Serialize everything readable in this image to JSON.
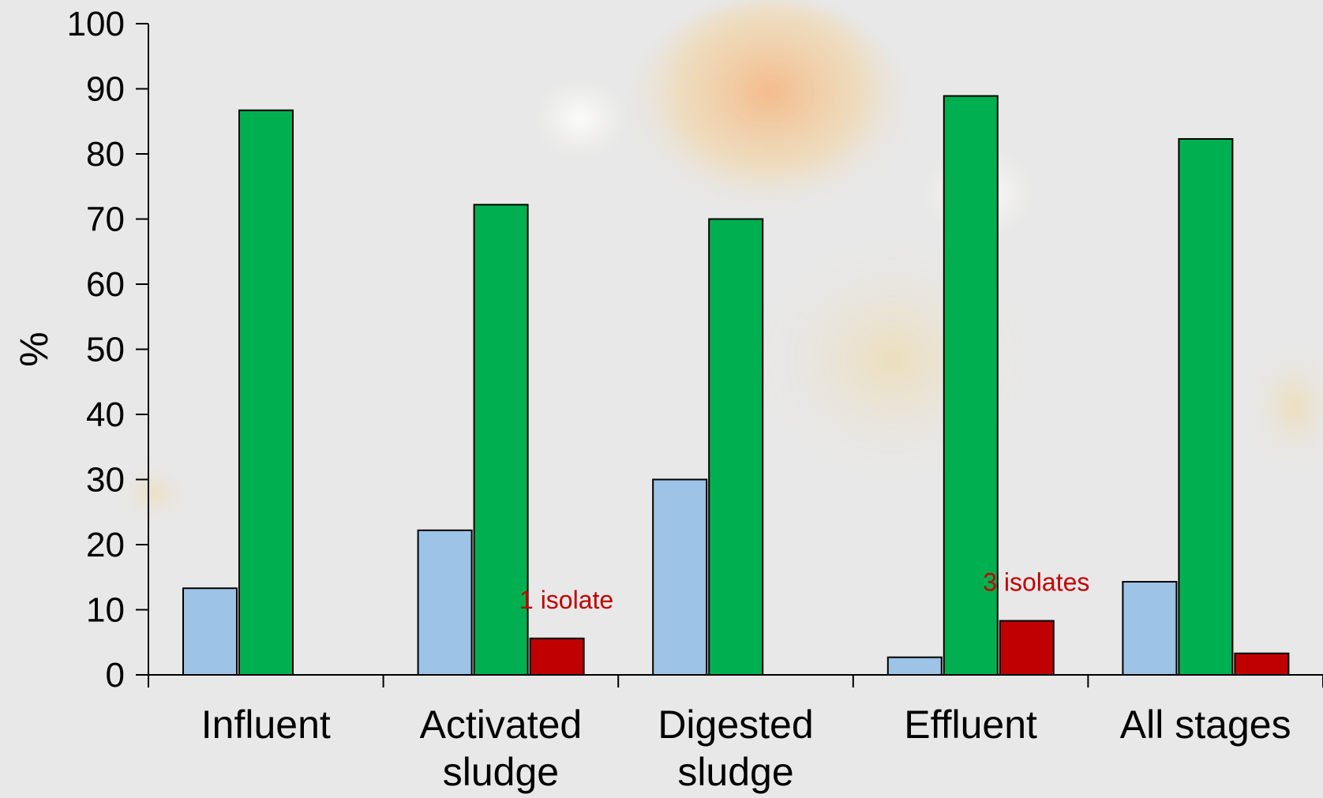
{
  "colors": {
    "background": "#e8e8e8",
    "series": [
      "#9dc3e6",
      "#00b050",
      "#c00000"
    ],
    "annotation": "#c00000"
  },
  "chart_data": {
    "type": "bar",
    "title": "",
    "xlabel": "",
    "ylabel": "%",
    "ylim": [
      0,
      100
    ],
    "yticks": [
      "0",
      "10",
      "20",
      "30",
      "40",
      "50",
      "60",
      "70",
      "80",
      "90",
      "100"
    ],
    "categories": [
      [
        "Influent"
      ],
      [
        "Activated",
        "sludge"
      ],
      [
        "Digested",
        "sludge"
      ],
      [
        "Effluent"
      ],
      [
        "All stages"
      ]
    ],
    "series": [
      {
        "values": [
          13.3,
          22.2,
          30.0,
          2.7,
          14.3
        ]
      },
      {
        "values": [
          86.7,
          72.2,
          70.0,
          88.9,
          82.3
        ]
      },
      {
        "values": [
          0,
          5.6,
          0,
          8.3,
          3.3
        ]
      }
    ],
    "annotations": [
      {
        "text": "1 isolate",
        "category_index": 1,
        "series_index": 2
      },
      {
        "text": "3 isolates",
        "category_index": 3,
        "series_index": 2
      }
    ],
    "grid": false,
    "legend": "none"
  }
}
